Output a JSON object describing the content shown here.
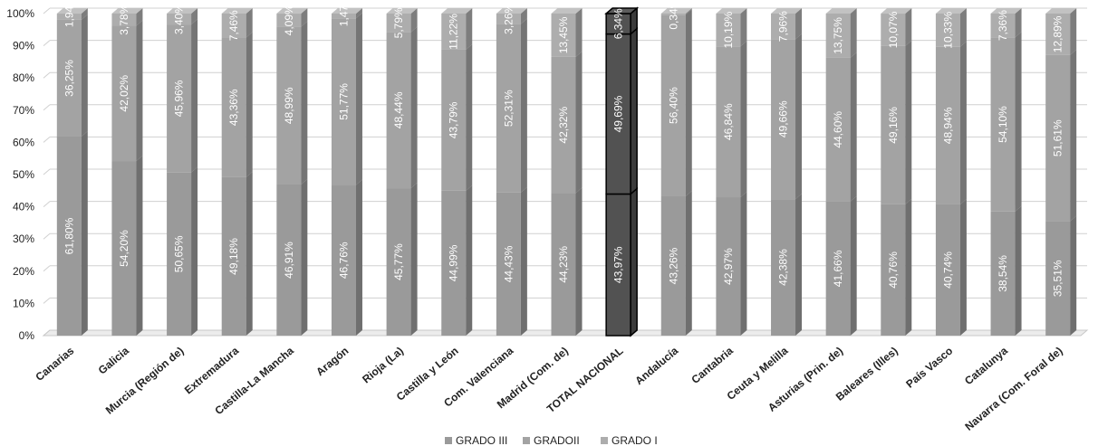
{
  "chart_data": {
    "type": "bar",
    "stacked": true,
    "percent_stacked": true,
    "three_d": true,
    "grid": true,
    "legend_position": "bottom",
    "ylim": [
      0,
      100
    ],
    "y_ticks": [
      "0%",
      "10%",
      "20%",
      "30%",
      "40%",
      "50%",
      "60%",
      "70%",
      "80%",
      "90%",
      "100%"
    ],
    "categories": [
      "Canarias",
      "Galicia",
      "Murcia (Región de)",
      "Extremadura",
      "Castilla-La Mancha",
      "Aragón",
      "Rioja (La)",
      "Castilla y León",
      "Com. Valenciana",
      "Madrid (Com. de)",
      "TOTAL NACIONAL",
      "Andalucía",
      "Cantabria",
      "Ceuta y Melilla",
      "Asturias (Prin. de)",
      "Baleares (Illes)",
      "País Vasco",
      "Catalunya",
      "Navarra (Com. Foral de)"
    ],
    "highlight_category": "TOTAL NACIONAL",
    "series": [
      {
        "name": "GRADO III",
        "color": "#9a9a9a",
        "values": [
          61.8,
          54.2,
          50.65,
          49.18,
          46.91,
          46.76,
          45.77,
          44.99,
          44.43,
          44.23,
          43.97,
          43.26,
          42.97,
          42.38,
          41.66,
          40.76,
          40.74,
          38.54,
          35.51
        ],
        "labels": [
          "61,80%",
          "54,20%",
          "50,65%",
          "49,18%",
          "46,91%",
          "46,76%",
          "45,77%",
          "44,99%",
          "44,43%",
          "44,23%",
          "43,97%",
          "43,26%",
          "42,97%",
          "42,38%",
          "41,66%",
          "40,76%",
          "40,74%",
          "38,54%",
          "35,51%"
        ]
      },
      {
        "name": "GRADOII",
        "color": "#a3a3a3",
        "values": [
          36.25,
          42.02,
          45.96,
          43.36,
          48.99,
          51.77,
          48.44,
          43.79,
          52.31,
          42.32,
          49.69,
          56.4,
          46.84,
          49.66,
          44.6,
          49.16,
          48.94,
          54.1,
          51.61
        ],
        "labels": [
          "36,25%",
          "42,02%",
          "45,96%",
          "43,36%",
          "48,99%",
          "51,77%",
          "48,44%",
          "43,79%",
          "52,31%",
          "42,32%",
          "49,69%",
          "56,40%",
          "46,84%",
          "49,66%",
          "44,60%",
          "49,16%",
          "48,94%",
          "54,10%",
          "51,61%"
        ]
      },
      {
        "name": "GRADO I",
        "color": "#adadad",
        "values": [
          1.94,
          3.78,
          3.4,
          7.46,
          4.09,
          1.47,
          5.79,
          11.22,
          3.26,
          13.45,
          6.34,
          0.34,
          10.19,
          7.96,
          13.75,
          10.07,
          10.33,
          7.36,
          12.89
        ],
        "labels": [
          "1,94",
          "3,78%",
          "3,40%",
          "7,46%",
          "4,09%",
          "1,47",
          "5,79%",
          "11,22%",
          "3,26%",
          "13,45%",
          "6,34%",
          "0,34%",
          "10,19%",
          "7,96%",
          "13,75%",
          "10,07%",
          "10,33%",
          "7,36%",
          "12,89%"
        ]
      }
    ]
  }
}
